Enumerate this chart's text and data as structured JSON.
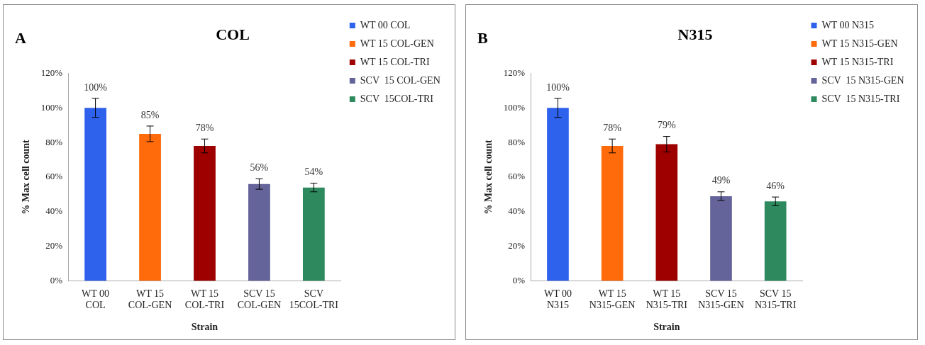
{
  "chart_data": [
    {
      "type": "bar",
      "title": "COL",
      "xlabel": "Strain",
      "ylabel": "% Max cell count",
      "annotations": [
        "A"
      ],
      "categories": [
        "WT 00 COL",
        "WT 15 COL-GEN",
        "WT 15 COL-TRI",
        "SCV 15 COL-GEN",
        "SCV 15COL-TRI"
      ],
      "series": [
        {
          "name": "WT 00 COL",
          "color": "#2f62ec",
          "values": [
            100,
            null,
            null,
            null,
            null
          ],
          "errors": [
            5.5,
            null,
            null,
            null,
            null
          ],
          "value_labels": [
            "100%",
            null,
            null,
            null,
            null
          ]
        },
        {
          "name": "WT 15 COL-GEN",
          "color": "#ff6a0a",
          "values": [
            null,
            85,
            null,
            null,
            null
          ],
          "errors": [
            null,
            4.5,
            null,
            null,
            null
          ],
          "value_labels": [
            null,
            "85%",
            null,
            null,
            null
          ]
        },
        {
          "name": "WT 15 COL-TRI",
          "color": "#9e0000",
          "values": [
            null,
            null,
            78,
            null,
            null
          ],
          "errors": [
            null,
            null,
            4,
            null,
            null
          ],
          "value_labels": [
            null,
            null,
            "78%",
            null,
            null
          ]
        },
        {
          "name": "SCV  15 COL-GEN",
          "color": "#64649a",
          "values": [
            null,
            null,
            null,
            56,
            null
          ],
          "errors": [
            null,
            null,
            null,
            3,
            null
          ],
          "value_labels": [
            null,
            null,
            null,
            "56%",
            null
          ]
        },
        {
          "name": "SCV  15COL-TRI",
          "color": "#2e8a5e",
          "values": [
            null,
            null,
            null,
            null,
            54
          ],
          "errors": [
            null,
            null,
            null,
            null,
            2.5
          ],
          "value_labels": [
            null,
            null,
            null,
            null,
            "54%"
          ]
        }
      ],
      "ylim": [
        0,
        120
      ],
      "yticks": [
        {
          "value": 0,
          "label": "0%"
        },
        {
          "value": 20,
          "label": "20%"
        },
        {
          "value": 40,
          "label": "40%"
        },
        {
          "value": 60,
          "label": "60%"
        },
        {
          "value": 80,
          "label": "80%"
        },
        {
          "value": 100,
          "label": "100%"
        },
        {
          "value": 120,
          "label": "120%"
        }
      ],
      "grid": false,
      "legend": "top right"
    },
    {
      "type": "bar",
      "title": "N315",
      "xlabel": "Strain",
      "ylabel": "% Max cell count",
      "annotations": [
        "B"
      ],
      "categories": [
        "WT 00 N315",
        "WT 15 N315-GEN",
        "WT 15 N315-TRI",
        "SCV 15 N315-GEN",
        "SCV 15 N315-TRI"
      ],
      "series": [
        {
          "name": "WT 00 N315",
          "color": "#2f62ec",
          "values": [
            100,
            null,
            null,
            null,
            null
          ],
          "errors": [
            5.5,
            null,
            null,
            null,
            null
          ],
          "value_labels": [
            "100%",
            null,
            null,
            null,
            null
          ]
        },
        {
          "name": "WT 15 N315-GEN",
          "color": "#ff6a0a",
          "values": [
            null,
            78,
            null,
            null,
            null
          ],
          "errors": [
            null,
            4,
            null,
            null,
            null
          ],
          "value_labels": [
            null,
            "78%",
            null,
            null,
            null
          ]
        },
        {
          "name": "WT 15 N315-TRI",
          "color": "#9e0000",
          "values": [
            null,
            null,
            79,
            null,
            null
          ],
          "errors": [
            null,
            null,
            4.5,
            null,
            null
          ],
          "value_labels": [
            null,
            null,
            "79%",
            null,
            null
          ]
        },
        {
          "name": "SCV  15 N315-GEN",
          "color": "#64649a",
          "values": [
            null,
            null,
            null,
            49,
            null
          ],
          "errors": [
            null,
            null,
            null,
            2.5,
            null
          ],
          "value_labels": [
            null,
            null,
            null,
            "49%",
            null
          ]
        },
        {
          "name": "SCV  15 N315-TRI",
          "color": "#2e8a5e",
          "values": [
            null,
            null,
            null,
            null,
            46
          ],
          "errors": [
            null,
            null,
            null,
            null,
            2.5
          ],
          "value_labels": [
            null,
            null,
            null,
            null,
            "46%"
          ]
        }
      ],
      "ylim": [
        0,
        120
      ],
      "yticks": [
        {
          "value": 0,
          "label": "0%"
        },
        {
          "value": 20,
          "label": "20%"
        },
        {
          "value": 40,
          "label": "40%"
        },
        {
          "value": 60,
          "label": "60%"
        },
        {
          "value": 80,
          "label": "80%"
        },
        {
          "value": 100,
          "label": "100%"
        },
        {
          "value": 120,
          "label": "120%"
        }
      ],
      "grid": false,
      "legend": "top right"
    }
  ]
}
